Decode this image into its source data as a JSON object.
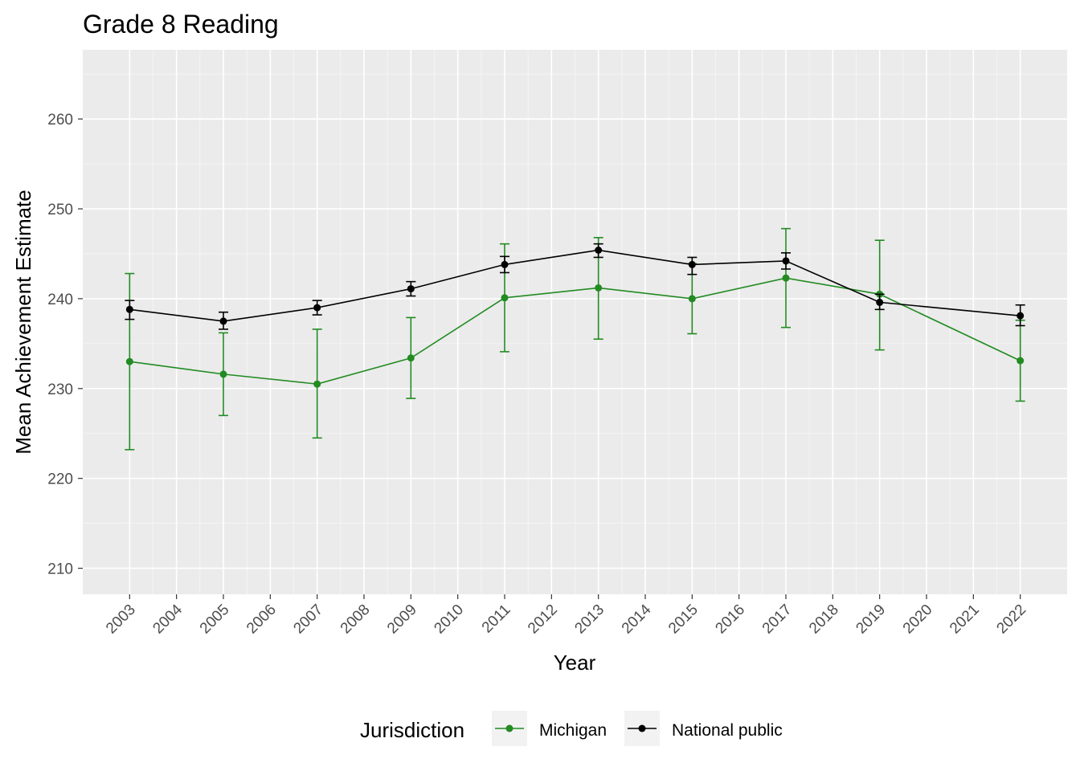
{
  "chart_data": {
    "type": "line",
    "title": "Grade 8 Reading",
    "xlabel": "Year",
    "ylabel": "Mean Achievement Estimate",
    "xlim": [
      2002,
      2023
    ],
    "ylim": [
      207.1,
      267.7
    ],
    "x_ticks": [
      2003,
      2004,
      2005,
      2006,
      2007,
      2008,
      2009,
      2010,
      2011,
      2012,
      2013,
      2014,
      2015,
      2016,
      2017,
      2018,
      2019,
      2020,
      2021,
      2022
    ],
    "y_ticks": [
      210,
      220,
      230,
      240,
      250,
      260
    ],
    "grid": true,
    "legend": {
      "title": "Jurisdiction",
      "position": "bottom"
    },
    "series": [
      {
        "name": "Michigan",
        "color": "#228B22",
        "x": [
          2003,
          2005,
          2007,
          2009,
          2011,
          2013,
          2015,
          2017,
          2019,
          2022
        ],
        "y": [
          233.0,
          231.6,
          230.5,
          233.4,
          240.1,
          241.2,
          240.0,
          242.3,
          240.5,
          233.1
        ],
        "upper": [
          242.8,
          236.2,
          236.6,
          237.9,
          246.1,
          246.8,
          243.9,
          247.8,
          246.5,
          237.6
        ],
        "lower": [
          223.2,
          227.0,
          224.5,
          228.9,
          234.1,
          235.5,
          236.1,
          236.8,
          234.3,
          228.6
        ]
      },
      {
        "name": "National public",
        "color": "#000000",
        "x": [
          2003,
          2005,
          2007,
          2009,
          2011,
          2013,
          2015,
          2017,
          2019,
          2022
        ],
        "y": [
          238.8,
          237.5,
          239.0,
          241.1,
          243.8,
          245.4,
          243.8,
          244.2,
          239.6,
          238.1
        ],
        "upper": [
          239.8,
          238.5,
          239.8,
          241.9,
          244.7,
          246.1,
          244.6,
          245.1,
          240.5,
          239.3
        ],
        "lower": [
          237.7,
          236.6,
          238.2,
          240.3,
          242.9,
          244.6,
          242.7,
          243.3,
          238.8,
          237.0
        ]
      }
    ]
  }
}
